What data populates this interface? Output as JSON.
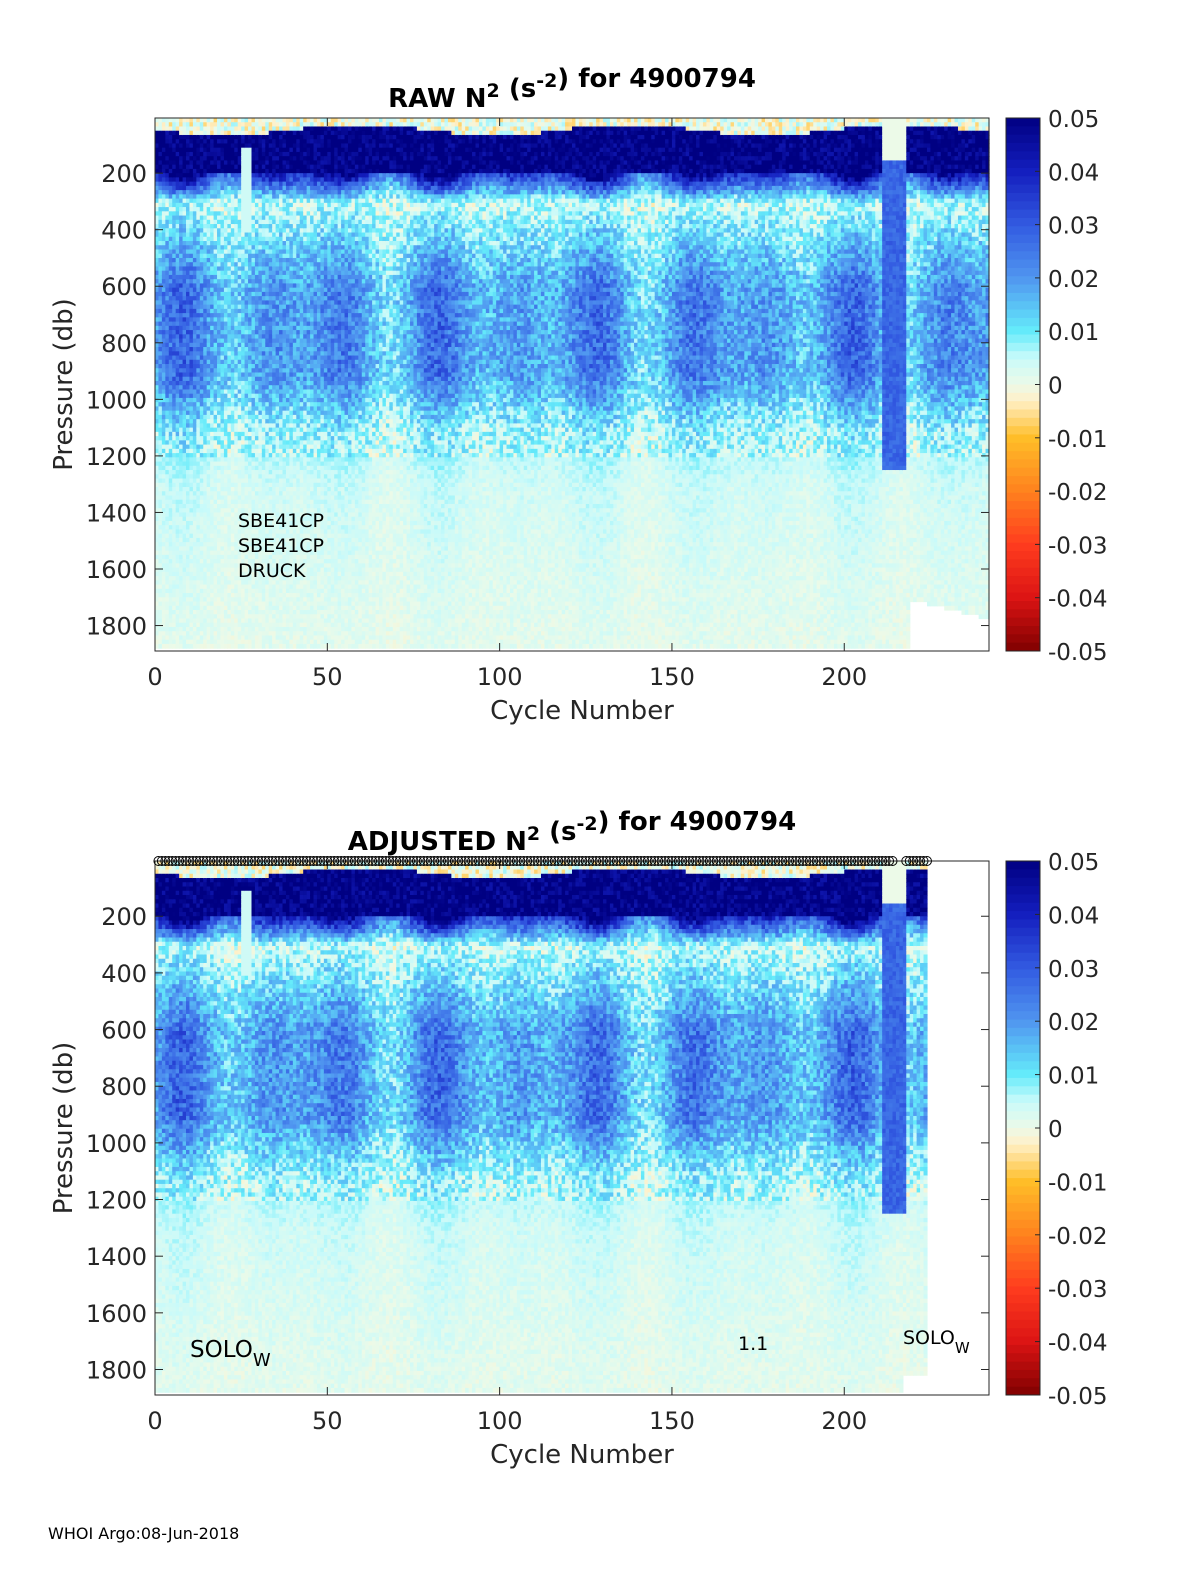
{
  "chart_data": [
    {
      "type": "heatmap",
      "title": "RAW N² (s⁻²) for 4900794",
      "title_parts": {
        "prefix": "RAW N",
        "sup1": "2",
        "mid": " (s",
        "sup2": "-2",
        "suffix": ") for 4900794"
      },
      "xlabel": "Cycle Number",
      "ylabel": "Pressure (db)",
      "xlim": [
        0,
        242
      ],
      "ylim": [
        1890,
        5
      ],
      "y_reversed": true,
      "xticks": [
        0,
        50,
        100,
        150,
        200
      ],
      "yticks": [
        200,
        400,
        600,
        800,
        1000,
        1200,
        1400,
        1600,
        1800
      ],
      "colorbar": {
        "range": [
          -0.05,
          0.05
        ],
        "ticks": [
          "0.05",
          "0.04",
          "0.03",
          "0.02",
          "0.01",
          "0",
          "-0.01",
          "-0.02",
          "-0.03",
          "-0.04",
          "-0.05"
        ],
        "colormap": "jet"
      },
      "annotations": [
        "SBE41CP",
        "SBE41CP",
        "DRUCK"
      ],
      "last_cycle": 242,
      "qc_markers": false
    },
    {
      "type": "heatmap",
      "title": "ADJUSTED N² (s⁻²) for 4900794",
      "title_parts": {
        "prefix": "ADJUSTED N",
        "sup1": "2",
        "mid": " (s",
        "sup2": "-2",
        "suffix": ") for 4900794"
      },
      "xlabel": "Cycle Number",
      "ylabel": "Pressure (db)",
      "xlim": [
        0,
        242
      ],
      "ylim": [
        1890,
        5
      ],
      "y_reversed": true,
      "xticks": [
        0,
        50,
        100,
        150,
        200
      ],
      "yticks": [
        200,
        400,
        600,
        800,
        1000,
        1200,
        1400,
        1600,
        1800
      ],
      "colorbar": {
        "range": [
          -0.05,
          0.05
        ],
        "ticks": [
          "0.05",
          "0.04",
          "0.03",
          "0.02",
          "0.01",
          "0",
          "-0.01",
          "-0.02",
          "-0.03",
          "-0.04",
          "-0.05"
        ],
        "colormap": "jet"
      },
      "annotations": [
        {
          "text": "SOLO",
          "sub": "W"
        },
        {
          "text": "1.1"
        },
        {
          "text": "SOLO",
          "sub": "W"
        }
      ],
      "last_cycle": 224,
      "qc_markers": true
    }
  ],
  "footer": "WHOI Argo:08-Jun-2018"
}
